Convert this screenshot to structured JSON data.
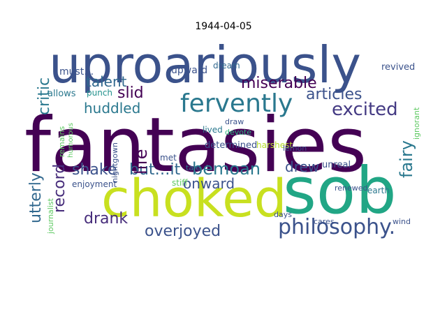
{
  "title": "1944-04-05",
  "cloud": {
    "words": [
      {
        "text": "fantasies",
        "color": "#440154"
      },
      {
        "text": "uproariously",
        "color": "#3b528b"
      },
      {
        "text": "sob",
        "color": "#21a685"
      },
      {
        "text": "choked",
        "color": "#c8e020"
      },
      {
        "text": "fervently",
        "color": "#2a788e"
      },
      {
        "text": "philosophy.",
        "color": "#3b528b"
      },
      {
        "text": "articles",
        "color": "#3b528b"
      },
      {
        "text": "excited",
        "color": "#443a83"
      },
      {
        "text": "miserable",
        "color": "#440154"
      },
      {
        "text": "slid",
        "color": "#440154"
      },
      {
        "text": "talent",
        "color": "#31688e"
      },
      {
        "text": "huddled",
        "color": "#2a788e"
      },
      {
        "text": "shake",
        "color": "#3b528b"
      },
      {
        "text": "but…it",
        "color": "#31688e"
      },
      {
        "text": "bemoan",
        "color": "#2a788e"
      },
      {
        "text": "onward",
        "color": "#3b528b"
      },
      {
        "text": "drank",
        "color": "#472d7b"
      },
      {
        "text": "overjoyed",
        "color": "#3b528b"
      },
      {
        "text": "drew",
        "color": "#3b528b"
      },
      {
        "text": "fairy",
        "color": "#2a788e"
      },
      {
        "text": "critic",
        "color": "#2a788e"
      },
      {
        "text": "life",
        "color": "#440154"
      },
      {
        "text": "record",
        "color": "#472d7b"
      },
      {
        "text": "utterly",
        "color": "#31688e"
      },
      {
        "text": "upward",
        "color": "#3b528b"
      },
      {
        "text": "dream",
        "color": "#31688e"
      },
      {
        "text": "must…",
        "color": "#3b528b"
      },
      {
        "text": "allows",
        "color": "#2a788e"
      },
      {
        "text": "punch",
        "color": "#21918c"
      },
      {
        "text": "lived",
        "color": "#2a788e"
      },
      {
        "text": "devote",
        "color": "#2fb47c"
      },
      {
        "text": "determined",
        "color": "#3b528b"
      },
      {
        "text": "harshest",
        "color": "#b5de2b"
      },
      {
        "text": "revived",
        "color": "#3b528b"
      },
      {
        "text": "ignorant",
        "color": "#5ec962"
      },
      {
        "text": "draw",
        "color": "#3b528b"
      },
      {
        "text": "lemon",
        "color": "#3b528b"
      },
      {
        "text": "tale",
        "color": "#2a788e"
      },
      {
        "text": "met",
        "color": "#3b528b"
      },
      {
        "text": "unreal",
        "color": "#3b528b"
      },
      {
        "text": "renewed",
        "color": "#3b528b"
      },
      {
        "text": "earth",
        "color": "#2a788e"
      },
      {
        "text": "wind",
        "color": "#3b528b"
      },
      {
        "text": "enjoyment",
        "color": "#3b528b"
      },
      {
        "text": "stiff",
        "color": "#5ec962"
      },
      {
        "text": "remains",
        "color": "#5ec962"
      },
      {
        "text": "humorous",
        "color": "#5ec962"
      },
      {
        "text": "nightgown",
        "color": "#3b528b"
      },
      {
        "text": "journalist",
        "color": "#5ec962"
      },
      {
        "text": "days",
        "color": "#3b528b"
      },
      {
        "text": "cares",
        "color": "#3b528b"
      }
    ]
  }
}
